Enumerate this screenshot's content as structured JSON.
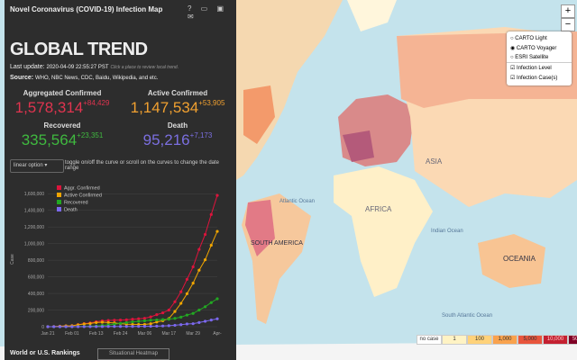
{
  "header": {
    "title": "Novel Coronavirus (COVID-19) Infection Map",
    "heading": "GLOBAL TREND",
    "last_update_label": "Last update:",
    "last_update": "2020-04-09 22:55:27 PST",
    "update_hint": "Click a place to review local trend.",
    "source_label": "Source:",
    "source": "WHO, NBC News, CDC, Baidu, Wikipedia, and etc."
  },
  "stats": [
    {
      "label": "Aggregated Confirmed",
      "value": "1,578,314",
      "delta": "+84,429",
      "color": "#e0344f"
    },
    {
      "label": "Active Confirmed",
      "value": "1,147,534",
      "delta": "+53,905",
      "color": "#f0a030"
    },
    {
      "label": "Recovered",
      "value": "335,564",
      "delta": "+23,351",
      "color": "#3fb93f"
    },
    {
      "label": "Death",
      "value": "95,216",
      "delta": "+7,173",
      "color": "#7b6fe0"
    }
  ],
  "scale_option": {
    "label": "linear option",
    "hint": "toggle on/off the curve or scroll on the curves to change the date range"
  },
  "chart_data": {
    "type": "line",
    "y_label": "Case",
    "categories": [
      "Jan 21",
      null,
      null,
      null,
      "Feb 01",
      null,
      null,
      null,
      "Feb 13",
      null,
      null,
      null,
      "Feb 24",
      null,
      null,
      null,
      "Mar 06",
      null,
      null,
      null,
      "Mar 17",
      null,
      null,
      null,
      "Mar 29",
      null,
      null,
      null,
      "Apr-"
    ],
    "series": [
      {
        "name": "Aggr. Confirmed",
        "color": "#dc143c",
        "values": [
          300,
          2000,
          6000,
          9800,
          12000,
          24000,
          37000,
          45000,
          60000,
          71000,
          75000,
          78000,
          80000,
          83000,
          89000,
          95000,
          101000,
          118000,
          145000,
          167000,
          200000,
          300000,
          420000,
          570000,
          720000,
          930000,
          1110000,
          1350000,
          1580000
        ]
      },
      {
        "name": "Active Confirmed",
        "color": "#f0a500",
        "values": [
          290,
          1950,
          5750,
          9350,
          11400,
          22400,
          33100,
          37700,
          49500,
          54100,
          50600,
          45300,
          37200,
          30000,
          27800,
          26500,
          27000,
          35000,
          56500,
          72000,
          98000,
          183000,
          281000,
          397000,
          524000,
          680000,
          805000,
          980000,
          1147000
        ]
      },
      {
        "name": "Recovered",
        "color": "#22a822",
        "values": [
          0,
          0,
          100,
          200,
          300,
          1000,
          3000,
          6000,
          9000,
          15000,
          22000,
          30000,
          40000,
          50000,
          58000,
          65000,
          70000,
          78000,
          82000,
          86000,
          90000,
          100000,
          115000,
          140000,
          160000,
          200000,
          240000,
          290000,
          336000
        ]
      },
      {
        "name": "Death",
        "color": "#7b68ee",
        "values": [
          10,
          50,
          150,
          250,
          300,
          600,
          900,
          1300,
          1500,
          1900,
          2400,
          2700,
          2800,
          3000,
          3200,
          3500,
          4000,
          5000,
          6500,
          9000,
          12000,
          17000,
          24000,
          33000,
          36000,
          50000,
          65000,
          80000,
          95000
        ]
      }
    ],
    "ylim": [
      0,
      1700000
    ],
    "yticks": [
      0,
      {
        "value": 200000,
        "label": "200,000"
      },
      {
        "value": 400000,
        "label": "400,000"
      },
      {
        "value": 600000,
        "label": "600,000"
      },
      {
        "value": 800000,
        "label": "800,000"
      },
      {
        "value": 1000000,
        "label": "1,000,000"
      },
      {
        "value": 1200000,
        "label": "1,200,000"
      },
      {
        "value": 1400000,
        "label": "1,400,000"
      },
      {
        "value": 1600000,
        "label": "1,600,000"
      }
    ],
    "grid": true
  },
  "footer": {
    "rankings": "World or U.S. Rankings",
    "heatmap": "Situational Heatmap"
  },
  "map_labels": [
    "ASIA",
    "AFRICA",
    "SOUTH AMERICA",
    "OCEANIA",
    "Atlantic Ocean",
    "Indian Ocean",
    "South Atlantic Ocean"
  ],
  "layers": [
    "CARTO Light",
    "CARTO Voyager",
    "ESRI Satellite",
    "Infection Level",
    "Infection Case(s)"
  ],
  "zoom": [
    "+",
    "−"
  ],
  "map_legend": [
    {
      "label": "no case",
      "color": "#ffffff"
    },
    {
      "label": "1",
      "color": "#fff3c4"
    },
    {
      "label": "100",
      "color": "#ffd27a"
    },
    {
      "label": "1,000",
      "color": "#f9a24d"
    },
    {
      "label": "5,000",
      "color": "#e8553c"
    },
    {
      "label": "10,000",
      "color": "#c42030"
    },
    {
      "label": "50,000",
      "color": "#800026"
    }
  ]
}
